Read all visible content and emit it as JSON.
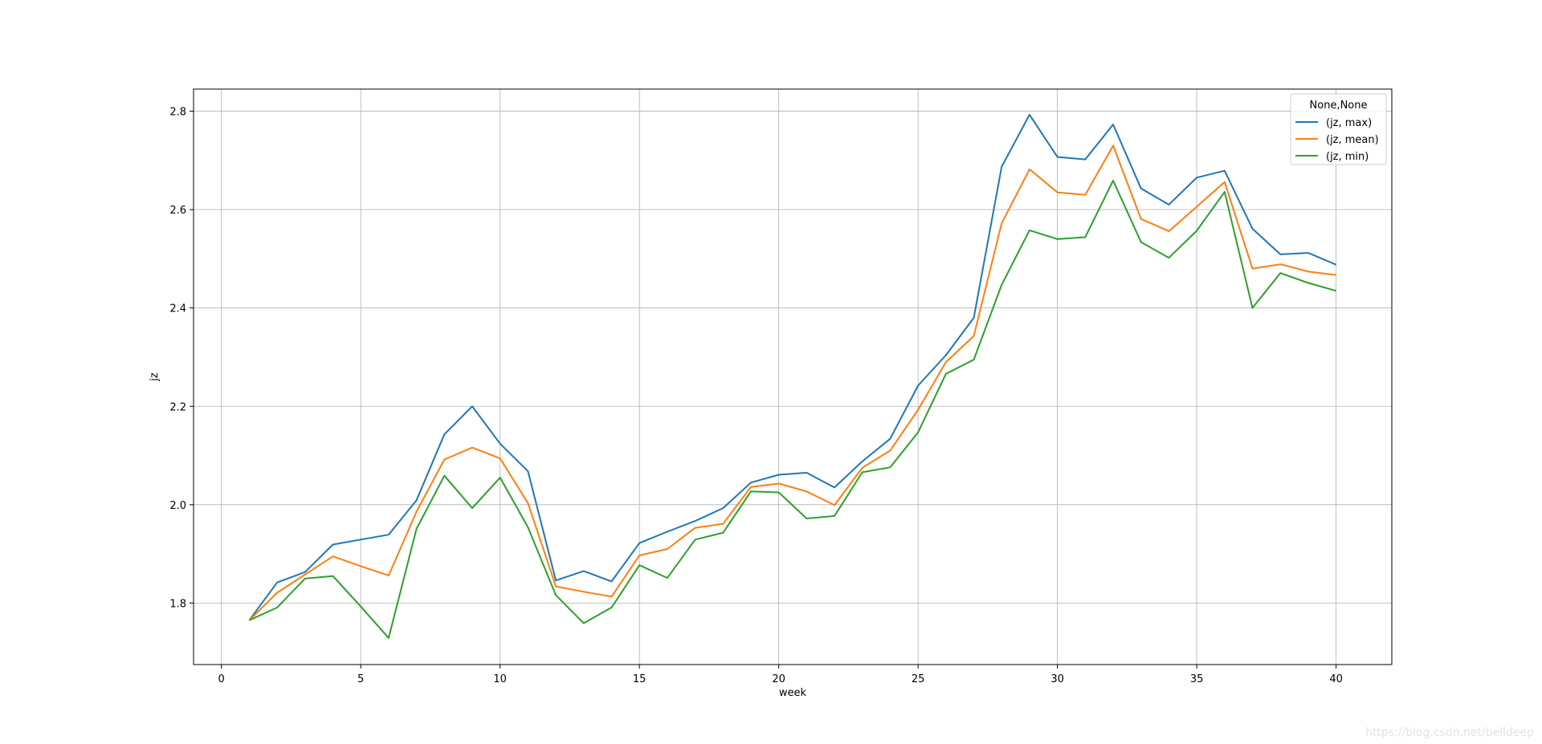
{
  "chart_data": {
    "type": "line",
    "xlabel": "week",
    "ylabel": "jz",
    "xlim": [
      -1,
      42
    ],
    "ylim": [
      1.675,
      2.845
    ],
    "xticks": [
      0,
      5,
      10,
      15,
      20,
      25,
      30,
      35,
      40
    ],
    "yticks": [
      1.8,
      2.0,
      2.2,
      2.4,
      2.6,
      2.8
    ],
    "grid": true,
    "legend": {
      "title": "None,None",
      "placement": "top-right"
    },
    "x": [
      1,
      2,
      3,
      4,
      5,
      6,
      7,
      8,
      9,
      10,
      11,
      12,
      13,
      14,
      15,
      16,
      17,
      18,
      19,
      20,
      21,
      22,
      23,
      24,
      25,
      26,
      27,
      28,
      29,
      30,
      31,
      32,
      33,
      34,
      35,
      36,
      37,
      38,
      39,
      40
    ],
    "series": [
      {
        "name": "(jz, max)",
        "color": "#1f77b4",
        "values": [
          1.765,
          1.842,
          1.863,
          1.919,
          1.929,
          1.939,
          2.009,
          2.143,
          2.2,
          2.124,
          2.068,
          1.846,
          1.865,
          1.844,
          1.922,
          1.945,
          1.967,
          1.993,
          2.045,
          2.061,
          2.065,
          2.035,
          2.088,
          2.134,
          2.242,
          2.304,
          2.38,
          2.687,
          2.793,
          2.707,
          2.702,
          2.773,
          2.643,
          2.61,
          2.665,
          2.679,
          2.561,
          2.509,
          2.512,
          2.488
        ]
      },
      {
        "name": "(jz, mean)",
        "color": "#ff7f0e",
        "values": [
          1.765,
          1.821,
          1.858,
          1.895,
          1.875,
          1.856,
          1.986,
          2.092,
          2.116,
          2.094,
          2.003,
          1.834,
          1.823,
          1.813,
          1.897,
          1.91,
          1.953,
          1.961,
          2.036,
          2.043,
          2.027,
          1.999,
          2.075,
          2.11,
          2.193,
          2.29,
          2.343,
          2.572,
          2.682,
          2.635,
          2.63,
          2.73,
          2.581,
          2.556,
          2.606,
          2.656,
          2.48,
          2.489,
          2.474,
          2.467
        ]
      },
      {
        "name": "(jz, min)",
        "color": "#2ca02c",
        "values": [
          1.765,
          1.791,
          1.85,
          1.855,
          1.793,
          1.729,
          1.951,
          2.059,
          1.993,
          2.055,
          1.954,
          1.816,
          1.759,
          1.791,
          1.877,
          1.851,
          1.929,
          1.943,
          2.027,
          2.025,
          1.972,
          1.977,
          2.066,
          2.076,
          2.147,
          2.266,
          2.295,
          2.447,
          2.558,
          2.54,
          2.544,
          2.659,
          2.534,
          2.502,
          2.557,
          2.636,
          2.4,
          2.471,
          2.451,
          2.435
        ]
      }
    ]
  },
  "watermark": "https://blog.csdn.net/belldeep"
}
